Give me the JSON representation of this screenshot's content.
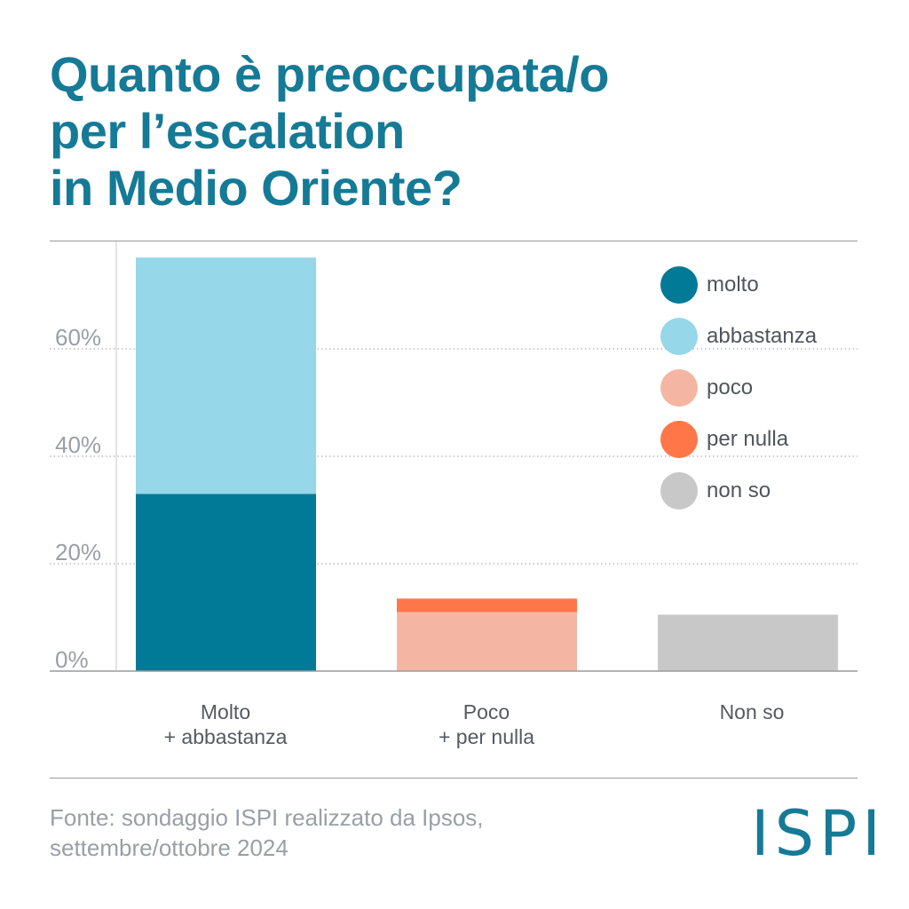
{
  "title_lines": [
    "Quanto è preoccupata/o",
    "per l’escalation",
    "in Medio Oriente?"
  ],
  "chart_data": {
    "type": "bar",
    "stacked": true,
    "title": "Quanto è preoccupata/o per l’escalation in Medio Oriente?",
    "categories": [
      [
        "Molto",
        "+ abbastanza"
      ],
      [
        "Poco",
        "+ per nulla"
      ],
      [
        "Non so"
      ]
    ],
    "series": [
      {
        "name": "molto",
        "color": "#007a96",
        "values": [
          33,
          0,
          0
        ]
      },
      {
        "name": "abbastanza",
        "color": "#96d7ea",
        "values": [
          44,
          0,
          0
        ]
      },
      {
        "name": "poco",
        "color": "#f4b6a3",
        "values": [
          0,
          11,
          0
        ]
      },
      {
        "name": "per nulla",
        "color": "#ff7649",
        "values": [
          0,
          2.5,
          0
        ]
      },
      {
        "name": "non so",
        "color": "#c9c8c9",
        "values": [
          0,
          0,
          10.5
        ]
      }
    ],
    "yticks": [
      "0%",
      "20%",
      "40%",
      "60%"
    ],
    "ytick_values": [
      0,
      20,
      40,
      60
    ],
    "ylim": [
      0,
      80
    ],
    "grid": true,
    "legend_position": "top-right",
    "xlabel": "",
    "ylabel": ""
  },
  "source_lines": [
    "Fonte: sondaggio ISPI realizzato da Ipsos,",
    "settembre/ottobre 2024"
  ],
  "logo": "ISPI"
}
